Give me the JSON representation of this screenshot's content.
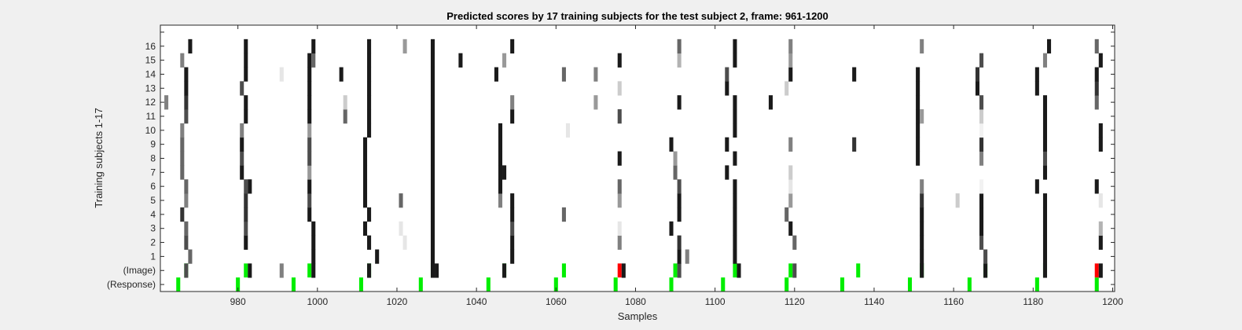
{
  "chart_data": {
    "type": "heatmap",
    "title": "Predicted scores by 17 training subjects for the test subject 2, frame: 961-1200",
    "xlabel": "Samples",
    "ylabel": "Training subjects 1-17",
    "xlim": [
      961,
      1200
    ],
    "xticks": [
      980,
      1000,
      1020,
      1040,
      1060,
      1080,
      1100,
      1120,
      1140,
      1160,
      1180,
      1200
    ],
    "rows": [
      "(Response)",
      "(Image)",
      "1",
      "2",
      "3",
      "4",
      "5",
      "6",
      "7",
      "8",
      "9",
      "10",
      "11",
      "12",
      "13",
      "14",
      "15",
      "16",
      ""
    ],
    "colors": {
      "background": "#f0f0f0",
      "plot": "#ffffff",
      "green": "#00ee00",
      "red": "#ff0000"
    },
    "response_marks": [
      {
        "x": 965,
        "c": "g"
      },
      {
        "x": 980,
        "c": "g"
      },
      {
        "x": 994,
        "c": "g"
      },
      {
        "x": 1011,
        "c": "g"
      },
      {
        "x": 1026,
        "c": "g"
      },
      {
        "x": 1043,
        "c": "g"
      },
      {
        "x": 1060,
        "c": "g"
      },
      {
        "x": 1075,
        "c": "g"
      },
      {
        "x": 1089,
        "c": "g"
      },
      {
        "x": 1102,
        "c": "g"
      },
      {
        "x": 1118,
        "c": "g"
      },
      {
        "x": 1132,
        "c": "g"
      },
      {
        "x": 1149,
        "c": "g"
      },
      {
        "x": 1164,
        "c": "g"
      },
      {
        "x": 1181,
        "c": "g"
      },
      {
        "x": 1196,
        "c": "g"
      }
    ],
    "image_marks": [
      {
        "x": 967,
        "c": "g"
      },
      {
        "x": 982,
        "c": "g"
      },
      {
        "x": 998,
        "c": "g"
      },
      {
        "x": 1013,
        "c": "g"
      },
      {
        "x": 1029,
        "c": "g"
      },
      {
        "x": 1047,
        "c": "g"
      },
      {
        "x": 1062,
        "c": "g"
      },
      {
        "x": 1076,
        "c": "r"
      },
      {
        "x": 1090,
        "c": "g"
      },
      {
        "x": 1105,
        "c": "g"
      },
      {
        "x": 1119,
        "c": "g"
      },
      {
        "x": 1136,
        "c": "g"
      },
      {
        "x": 1152,
        "c": "g"
      },
      {
        "x": 1168,
        "c": "g"
      },
      {
        "x": 1183,
        "c": "g"
      },
      {
        "x": 1196,
        "c": "r"
      }
    ],
    "score_columns": [
      {
        "x": 962,
        "rows": [
          [
            13,
            0.5
          ]
        ]
      },
      {
        "x": 966,
        "rows": [
          [
            10,
            0.4
          ],
          [
            11,
            0.5
          ],
          [
            9,
            0.4
          ],
          [
            8,
            0.4
          ],
          [
            5,
            0.2
          ],
          [
            16,
            0.5
          ]
        ]
      },
      {
        "x": 967,
        "rows": [
          [
            1,
            0.3
          ],
          [
            3,
            0.3
          ],
          [
            4,
            0.4
          ],
          [
            6,
            0.5
          ],
          [
            7,
            0.4
          ],
          [
            12,
            0.3
          ],
          [
            13,
            0.2
          ],
          [
            14,
            0.1
          ],
          [
            15,
            0.1
          ]
        ]
      },
      {
        "x": 968,
        "rows": [
          [
            2,
            0.4
          ],
          [
            17,
            0.1
          ]
        ]
      },
      {
        "x": 981,
        "rows": [
          [
            8,
            0.1
          ],
          [
            9,
            0.3
          ],
          [
            10,
            0.1
          ],
          [
            11,
            0.5
          ],
          [
            14,
            0.3
          ]
        ]
      },
      {
        "x": 982,
        "rows": [
          [
            3,
            0.1
          ],
          [
            4,
            0.3
          ],
          [
            5,
            0.2
          ],
          [
            6,
            0.2
          ],
          [
            7,
            0.3
          ],
          [
            12,
            0.1
          ],
          [
            13,
            0.1
          ],
          [
            15,
            0.1
          ],
          [
            16,
            0.1
          ],
          [
            17,
            0.1
          ]
        ]
      },
      {
        "x": 983,
        "rows": [
          [
            1,
            0.1
          ],
          [
            7,
            0.1
          ]
        ]
      },
      {
        "x": 991,
        "rows": [
          [
            1,
            0.5
          ],
          [
            15,
            0.9
          ]
        ]
      },
      {
        "x": 998,
        "rows": [
          [
            5,
            0.1
          ],
          [
            6,
            0.3
          ],
          [
            7,
            0.1
          ],
          [
            8,
            0.6
          ],
          [
            9,
            0.3
          ],
          [
            10,
            0.3
          ],
          [
            11,
            0.6
          ],
          [
            12,
            0.1
          ],
          [
            13,
            0.1
          ],
          [
            14,
            0.1
          ],
          [
            15,
            0.1
          ],
          [
            16,
            0.1
          ]
        ]
      },
      {
        "x": 999,
        "rows": [
          [
            1,
            0.1
          ],
          [
            2,
            0.1
          ],
          [
            3,
            0.1
          ],
          [
            4,
            0.1
          ],
          [
            16,
            0.4
          ],
          [
            17,
            0.1
          ]
        ]
      },
      {
        "x": 1006,
        "rows": [
          [
            15,
            0.1
          ]
        ]
      },
      {
        "x": 1007,
        "rows": [
          [
            12,
            0.4
          ],
          [
            13,
            0.8
          ]
        ]
      },
      {
        "x": 1012,
        "rows": [
          [
            4,
            0.1
          ],
          [
            6,
            0.1
          ],
          [
            7,
            0.1
          ],
          [
            8,
            0.1
          ],
          [
            9,
            0.1
          ],
          [
            10,
            0.1
          ]
        ]
      },
      {
        "x": 1013,
        "rows": [
          [
            1,
            0.1
          ],
          [
            3,
            0.1
          ],
          [
            5,
            0.1
          ],
          [
            11,
            0.1
          ],
          [
            12,
            0.1
          ],
          [
            13,
            0.1
          ],
          [
            14,
            0.1
          ],
          [
            15,
            0.1
          ],
          [
            16,
            0.1
          ],
          [
            17,
            0.1
          ]
        ]
      },
      {
        "x": 1015,
        "rows": [
          [
            2,
            0.1
          ]
        ]
      },
      {
        "x": 1021,
        "rows": [
          [
            4,
            0.9
          ],
          [
            6,
            0.4
          ]
        ]
      },
      {
        "x": 1022,
        "rows": [
          [
            3,
            0.9
          ],
          [
            17,
            0.6
          ]
        ]
      },
      {
        "x": 1029,
        "rows": [
          [
            1,
            0.1
          ],
          [
            2,
            0.1
          ],
          [
            3,
            0.1
          ],
          [
            4,
            0.1
          ],
          [
            5,
            0.1
          ],
          [
            6,
            0.1
          ],
          [
            7,
            0.1
          ],
          [
            8,
            0.1
          ],
          [
            9,
            0.1
          ],
          [
            10,
            0.1
          ],
          [
            11,
            0.1
          ],
          [
            12,
            0.1
          ],
          [
            13,
            0.1
          ],
          [
            14,
            0.1
          ],
          [
            15,
            0.1
          ],
          [
            16,
            0.1
          ],
          [
            17,
            0.1
          ]
        ]
      },
      {
        "x": 1030,
        "rows": [
          [
            1,
            0.1
          ]
        ]
      },
      {
        "x": 1036,
        "rows": [
          [
            16,
            0.1
          ]
        ]
      },
      {
        "x": 1045,
        "rows": [
          [
            15,
            0.1
          ]
        ]
      },
      {
        "x": 1046,
        "rows": [
          [
            6,
            0.5
          ],
          [
            7,
            0.1
          ],
          [
            8,
            0.1
          ],
          [
            9,
            0.1
          ],
          [
            10,
            0.1
          ],
          [
            11,
            0.1
          ]
        ]
      },
      {
        "x": 1047,
        "rows": [
          [
            1,
            0.1
          ],
          [
            8,
            0.1
          ],
          [
            16,
            0.6
          ]
        ]
      },
      {
        "x": 1049,
        "rows": [
          [
            2,
            0.1
          ],
          [
            3,
            0.1
          ],
          [
            4,
            0.3
          ],
          [
            5,
            0.1
          ],
          [
            6,
            0.1
          ],
          [
            12,
            0.1
          ],
          [
            13,
            0.5
          ],
          [
            17,
            0.1
          ]
        ]
      },
      {
        "x": 1062,
        "rows": [
          [
            5,
            0.4
          ],
          [
            15,
            0.4
          ]
        ]
      },
      {
        "x": 1063,
        "rows": [
          [
            11,
            0.9
          ]
        ]
      },
      {
        "x": 1070,
        "rows": [
          [
            13,
            0.6
          ],
          [
            15,
            0.5
          ]
        ]
      },
      {
        "x": 1076,
        "rows": [
          [
            3,
            0.5
          ],
          [
            4,
            0.9
          ],
          [
            6,
            0.6
          ],
          [
            7,
            0.4
          ],
          [
            9,
            0.1
          ],
          [
            12,
            0.3
          ],
          [
            14,
            0.8
          ],
          [
            16,
            0.1
          ]
        ]
      },
      {
        "x": 1077,
        "rows": [
          [
            1,
            0.1
          ]
        ]
      },
      {
        "x": 1089,
        "rows": [
          [
            4,
            0.1
          ],
          [
            10,
            0.1
          ]
        ]
      },
      {
        "x": 1090,
        "rows": [
          [
            8,
            0.4
          ],
          [
            9,
            0.6
          ]
        ]
      },
      {
        "x": 1091,
        "rows": [
          [
            1,
            0.3
          ],
          [
            2,
            0.1
          ],
          [
            3,
            0.2
          ],
          [
            5,
            0.1
          ],
          [
            6,
            0.1
          ],
          [
            7,
            0.3
          ],
          [
            13,
            0.1
          ],
          [
            16,
            0.7
          ],
          [
            17,
            0.4
          ]
        ]
      },
      {
        "x": 1093,
        "rows": [
          [
            2,
            0.5
          ]
        ]
      },
      {
        "x": 1103,
        "rows": [
          [
            8,
            0.1
          ],
          [
            10,
            0.1
          ],
          [
            14,
            0.1
          ],
          [
            15,
            0.3
          ]
        ]
      },
      {
        "x": 1105,
        "rows": [
          [
            2,
            0.1
          ],
          [
            3,
            0.1
          ],
          [
            4,
            0.1
          ],
          [
            5,
            0.1
          ],
          [
            6,
            0.1
          ],
          [
            7,
            0.1
          ],
          [
            9,
            0.1
          ],
          [
            11,
            0.1
          ],
          [
            12,
            0.1
          ],
          [
            13,
            0.1
          ],
          [
            16,
            0.1
          ],
          [
            17,
            0.1
          ]
        ]
      },
      {
        "x": 1106,
        "rows": [
          [
            1,
            0.1
          ]
        ]
      },
      {
        "x": 1114,
        "rows": [
          [
            13,
            0.1
          ]
        ]
      },
      {
        "x": 1118,
        "rows": [
          [
            5,
            0.4
          ],
          [
            14,
            0.8
          ]
        ]
      },
      {
        "x": 1119,
        "rows": [
          [
            4,
            0.1
          ],
          [
            6,
            0.6
          ],
          [
            7,
            0.9
          ],
          [
            8,
            0.8
          ],
          [
            10,
            0.5
          ],
          [
            15,
            0.1
          ],
          [
            16,
            0.6
          ],
          [
            17,
            0.5
          ]
        ]
      },
      {
        "x": 1120,
        "rows": [
          [
            1,
            0.3
          ],
          [
            3,
            0.4
          ]
        ]
      },
      {
        "x": 1135,
        "rows": [
          [
            10,
            0.2
          ],
          [
            15,
            0.1
          ]
        ]
      },
      {
        "x": 1151,
        "rows": [
          [
            9,
            0.1
          ],
          [
            10,
            0.1
          ],
          [
            11,
            0.1
          ],
          [
            12,
            0.1
          ],
          [
            13,
            0.1
          ],
          [
            14,
            0.1
          ],
          [
            15,
            0.1
          ]
        ]
      },
      {
        "x": 1152,
        "rows": [
          [
            1,
            0.1
          ],
          [
            2,
            0.1
          ],
          [
            3,
            0.1
          ],
          [
            4,
            0.1
          ],
          [
            5,
            0.1
          ],
          [
            6,
            0.2
          ],
          [
            7,
            0.5
          ],
          [
            12,
            0.6
          ],
          [
            17,
            0.5
          ]
        ]
      },
      {
        "x": 1161,
        "rows": [
          [
            6,
            0.8
          ]
        ]
      },
      {
        "x": 1166,
        "rows": [
          [
            14,
            0.1
          ],
          [
            15,
            0.2
          ]
        ]
      },
      {
        "x": 1167,
        "rows": [
          [
            3,
            0.3
          ],
          [
            4,
            0.1
          ],
          [
            5,
            0.1
          ],
          [
            6,
            0.1
          ],
          [
            7,
            0.95
          ],
          [
            9,
            0.5
          ],
          [
            10,
            0.2
          ],
          [
            11,
            0.95
          ],
          [
            12,
            0.8
          ],
          [
            13,
            0.3
          ],
          [
            16,
            0.3
          ]
        ]
      },
      {
        "x": 1168,
        "rows": [
          [
            1,
            0.1
          ],
          [
            2,
            0.3
          ]
        ]
      },
      {
        "x": 1181,
        "rows": [
          [
            7,
            0.1
          ],
          [
            14,
            0.1
          ],
          [
            15,
            0.1
          ]
        ]
      },
      {
        "x": 1183,
        "rows": [
          [
            1,
            0.1
          ],
          [
            2,
            0.1
          ],
          [
            3,
            0.1
          ],
          [
            4,
            0.1
          ],
          [
            5,
            0.1
          ],
          [
            6,
            0.1
          ],
          [
            8,
            0.1
          ],
          [
            9,
            0.3
          ],
          [
            10,
            0.1
          ],
          [
            11,
            0.1
          ],
          [
            12,
            0.1
          ],
          [
            13,
            0.1
          ],
          [
            16,
            0.5
          ]
        ]
      },
      {
        "x": 1184,
        "rows": [
          [
            17,
            0.1
          ]
        ]
      },
      {
        "x": 1196,
        "rows": [
          [
            7,
            0.1
          ],
          [
            13,
            0.4
          ],
          [
            14,
            0.2
          ],
          [
            15,
            0.1
          ],
          [
            17,
            0.4
          ]
        ]
      },
      {
        "x": 1197,
        "rows": [
          [
            1,
            0.1
          ],
          [
            3,
            0.1
          ],
          [
            4,
            0.7
          ],
          [
            6,
            0.9
          ],
          [
            10,
            0.1
          ],
          [
            11,
            0.1
          ],
          [
            16,
            0.1
          ]
        ]
      }
    ]
  }
}
